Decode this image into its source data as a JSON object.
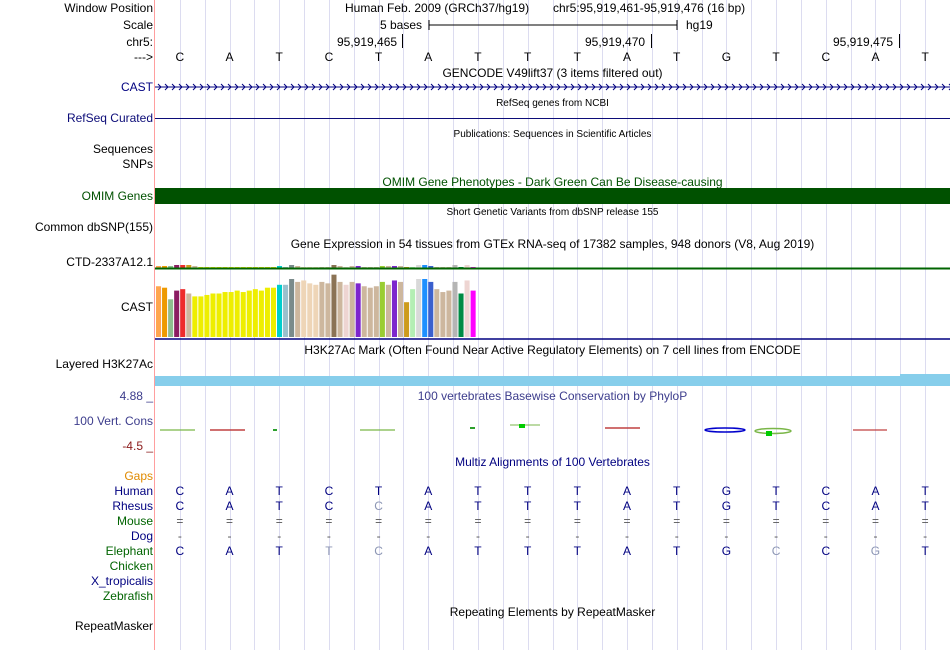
{
  "ruler": {
    "window_position_label": "Window Position",
    "scale_label": "Scale",
    "chrom_label": "chr5:",
    "arrow_label": "--->",
    "assembly_text": "Human Feb. 2009 (GRCh37/hg19)",
    "position_text": "chr5:95,919,461-95,919,476 (16 bp)",
    "scale_text": "5 bases",
    "scale_db": "hg19",
    "ticks": [
      "95,919,465",
      "95,919,470",
      "95,919,475"
    ],
    "bases": [
      "C",
      "A",
      "T",
      "C",
      "T",
      "A",
      "T",
      "T",
      "T",
      "A",
      "T",
      "G",
      "T",
      "C",
      "A",
      "T"
    ]
  },
  "tracks": {
    "gencode": {
      "center_label": "GENCODE V49lift37 (3 items filtered out)",
      "side_label": "CAST",
      "color": "#000080"
    },
    "refseq": {
      "center_label": "RefSeq genes from NCBI",
      "side_label": "RefSeq Curated",
      "color": "#0c0c78"
    },
    "publications": {
      "center_label": "Publications: Sequences in Scientific Articles",
      "side_labels": [
        "Sequences",
        "SNPs"
      ]
    },
    "omim": {
      "center_label": "OMIM Gene Phenotypes - Dark Green Can Be Disease-causing",
      "side_label": "OMIM Genes",
      "color": "#005100"
    },
    "dbsnp": {
      "center_label": "Short Genetic Variants from dbSNP release 155",
      "side_label": "Common dbSNP(155)"
    },
    "gtex": {
      "center_label": "Gene Expression in 54 tissues from GTEx RNA-seq of 17382 samples, 948 donors (V8, Aug 2019)",
      "side_labels": [
        "CTD-2337A12.1",
        "CAST"
      ],
      "line_color": "#006400",
      "bars_small": [
        {
          "h": 2,
          "c": "#ffa54f"
        },
        {
          "h": 2,
          "c": "#ee9a00"
        },
        {
          "h": 2,
          "c": "#8fbc8f"
        },
        {
          "h": 3,
          "c": "#8b1c62"
        },
        {
          "h": 3,
          "c": "#ee2c2c"
        },
        {
          "h": 3,
          "c": "#cd9b1d"
        },
        {
          "h": 2,
          "c": "#cdb79e"
        },
        {
          "h": 1,
          "c": "#eeee00"
        },
        {
          "h": 1,
          "c": "#eeee00"
        },
        {
          "h": 1,
          "c": "#eeee00"
        },
        {
          "h": 1,
          "c": "#eeee00"
        },
        {
          "h": 1,
          "c": "#eeee00"
        },
        {
          "h": 1,
          "c": "#eeee00"
        },
        {
          "h": 1,
          "c": "#eeee00"
        },
        {
          "h": 1,
          "c": "#eeee00"
        },
        {
          "h": 1,
          "c": "#eeee00"
        },
        {
          "h": 1,
          "c": "#eeee00"
        },
        {
          "h": 1,
          "c": "#eeee00"
        },
        {
          "h": 1,
          "c": "#eeee00"
        },
        {
          "h": 1,
          "c": "#eeee00"
        },
        {
          "h": 2,
          "c": "#00cdcd"
        },
        {
          "h": 1,
          "c": "#9ac0cd"
        },
        {
          "h": 3,
          "c": "#7a8b8b"
        },
        {
          "h": 2,
          "c": "#cdb79e"
        },
        {
          "h": 1,
          "c": "#eed5b7"
        },
        {
          "h": 1,
          "c": "#eed5b7"
        },
        {
          "h": 1,
          "c": "#eed5b7"
        },
        {
          "h": 1,
          "c": "#cdb79e"
        },
        {
          "h": 1,
          "c": "#cdb79e"
        },
        {
          "h": 3,
          "c": "#8b7355"
        },
        {
          "h": 2,
          "c": "#cdb79e"
        },
        {
          "h": 1,
          "c": "#eed5d2"
        },
        {
          "h": 2,
          "c": "#cdb79e"
        },
        {
          "h": 2,
          "c": "#7d26cd"
        },
        {
          "h": 1,
          "c": "#cdb79e"
        },
        {
          "h": 1,
          "c": "#cdb79e"
        },
        {
          "h": 1,
          "c": "#cdb79e"
        },
        {
          "h": 2,
          "c": "#9acd32"
        },
        {
          "h": 2,
          "c": "#cdb79e"
        },
        {
          "h": 2,
          "c": "#7d26cd"
        },
        {
          "h": 2,
          "c": "#cdb79e"
        },
        {
          "h": 1,
          "c": "#cd9b1d"
        },
        {
          "h": 1,
          "c": "#b4eeb4"
        },
        {
          "h": 3,
          "c": "#d9d9d9"
        },
        {
          "h": 3,
          "c": "#1e90ff"
        },
        {
          "h": 2,
          "c": "#3a5fcd"
        },
        {
          "h": 1,
          "c": "#cdb79e"
        },
        {
          "h": 1,
          "c": "#cdb79e"
        },
        {
          "h": 1,
          "c": "#cdb79e"
        },
        {
          "h": 3,
          "c": "#b5b5b5"
        },
        {
          "h": 1,
          "c": "#008b45"
        },
        {
          "h": 3,
          "c": "#eed5d2"
        },
        {
          "h": 1,
          "c": "#ff00ff"
        }
      ],
      "bars_large": [
        {
          "h": 34,
          "c": "#ffa54f"
        },
        {
          "h": 31,
          "c": "#ee9a00"
        },
        {
          "h": 26,
          "c": "#8fbc8f"
        },
        {
          "h": 32,
          "c": "#8b1c62"
        },
        {
          "h": 33,
          "c": "#ee2c2c"
        },
        {
          "h": 30,
          "c": "#cdb79e"
        },
        {
          "h": 27,
          "c": "#e8c8a8"
        },
        {
          "h": 31,
          "c": "#cd9b1d"
        },
        {
          "h": 30,
          "c": "#cdb79e"
        },
        {
          "h": 1,
          "c": "#cdb79e"
        }
      ]
    },
    "gtex_cast_bars": [
      {
        "h": 35,
        "c": "#ffa54f"
      },
      {
        "h": 34,
        "c": "#ee9a00"
      },
      {
        "h": 26,
        "c": "#8fbc8f"
      },
      {
        "h": 32,
        "c": "#8b1c62"
      },
      {
        "h": 33,
        "c": "#ee2c2c"
      },
      {
        "h": 30,
        "c": "#cdb79e"
      },
      {
        "h": 28,
        "c": "#eeee00"
      },
      {
        "h": 28,
        "c": "#eeee00"
      },
      {
        "h": 29,
        "c": "#eeee00"
      },
      {
        "h": 30,
        "c": "#eeee00"
      },
      {
        "h": 30,
        "c": "#eeee00"
      },
      {
        "h": 31,
        "c": "#eeee00"
      },
      {
        "h": 31,
        "c": "#eeee00"
      },
      {
        "h": 32,
        "c": "#eeee00"
      },
      {
        "h": 31,
        "c": "#eeee00"
      },
      {
        "h": 32,
        "c": "#eeee00"
      },
      {
        "h": 33,
        "c": "#eeee00"
      },
      {
        "h": 32,
        "c": "#eeee00"
      },
      {
        "h": 34,
        "c": "#eeee00"
      },
      {
        "h": 34,
        "c": "#eeee00"
      },
      {
        "h": 36,
        "c": "#00cdcd"
      },
      {
        "h": 36,
        "c": "#9ac0cd"
      },
      {
        "h": 40,
        "c": "#7a8b8b"
      },
      {
        "h": 38,
        "c": "#cdb79e"
      },
      {
        "h": 39,
        "c": "#eed5b7"
      },
      {
        "h": 37,
        "c": "#eed5b7"
      },
      {
        "h": 36,
        "c": "#eed5b7"
      },
      {
        "h": 38,
        "c": "#cdb79e"
      },
      {
        "h": 37,
        "c": "#cdb79e"
      },
      {
        "h": 43,
        "c": "#8b7355"
      },
      {
        "h": 38,
        "c": "#cdb79e"
      },
      {
        "h": 36,
        "c": "#eed5d2"
      },
      {
        "h": 38,
        "c": "#cdb79e"
      },
      {
        "h": 37,
        "c": "#7d26cd"
      },
      {
        "h": 35,
        "c": "#cdb79e"
      },
      {
        "h": 34,
        "c": "#cdb79e"
      },
      {
        "h": 35,
        "c": "#cdb79e"
      },
      {
        "h": 38,
        "c": "#9acd32"
      },
      {
        "h": 36,
        "c": "#cdb79e"
      },
      {
        "h": 39,
        "c": "#7d26cd"
      },
      {
        "h": 38,
        "c": "#cdb79e"
      },
      {
        "h": 24,
        "c": "#cd9b1d"
      },
      {
        "h": 33,
        "c": "#b4eeb4"
      },
      {
        "h": 40,
        "c": "#d9d9d9"
      },
      {
        "h": 40,
        "c": "#1e90ff"
      },
      {
        "h": 38,
        "c": "#3a5fcd"
      },
      {
        "h": 33,
        "c": "#cdb79e"
      },
      {
        "h": 31,
        "c": "#cdb79e"
      },
      {
        "h": 32,
        "c": "#cdb79e"
      },
      {
        "h": 38,
        "c": "#b5b5b5"
      },
      {
        "h": 30,
        "c": "#008b45"
      },
      {
        "h": 39,
        "c": "#eed5d2"
      },
      {
        "h": 32,
        "c": "#ff00ff"
      }
    ],
    "h3k27ac": {
      "center_label": "H3K27Ac Mark (Often Found Near Active Regulatory Elements) on 7 cell lines from ENCODE",
      "side_label": "Layered H3K27Ac",
      "color": "#87ceeb"
    },
    "phylop": {
      "center_label": "100 vertebrates Basewise Conservation by PhyloP",
      "side_label": "100 Vert. Cons",
      "max_label": "4.88 _",
      "min_label": "-4.5 _",
      "label_color": "#3c3c8c"
    },
    "multiz": {
      "center_label": "Multiz Alignments of 100 Vertebrates",
      "gaps_label": "Gaps",
      "species": [
        {
          "name": "Human",
          "color": "#000080",
          "row": [
            "C",
            "A",
            "T",
            "C",
            "T",
            "A",
            "T",
            "T",
            "T",
            "A",
            "T",
            "G",
            "T",
            "C",
            "A",
            "T"
          ]
        },
        {
          "name": "Rhesus",
          "color": "#000080",
          "row": [
            "C",
            "A",
            "T",
            "C",
            "C",
            "A",
            "T",
            "T",
            "T",
            "A",
            "T",
            "G",
            "T",
            "C",
            "A",
            "T"
          ]
        },
        {
          "name": "Mouse",
          "color": "#006400",
          "row": [
            "=",
            "=",
            "=",
            "=",
            "=",
            "=",
            "=",
            "=",
            "=",
            "=",
            "=",
            "=",
            "=",
            "=",
            "=",
            "="
          ]
        },
        {
          "name": "Dog",
          "color": "#000080",
          "row": [
            "-",
            "-",
            "-",
            "-",
            "-",
            "-",
            "-",
            "-",
            "-",
            "-",
            "-",
            "-",
            "-",
            "-",
            "-",
            "-"
          ]
        },
        {
          "name": "Elephant",
          "color": "#006400",
          "row": [
            "C",
            "A",
            "T",
            "T",
            "C",
            "A",
            "T",
            "T",
            "T",
            "A",
            "T",
            "G",
            "C",
            "C",
            "G",
            "T"
          ]
        },
        {
          "name": "Chicken",
          "color": "#006400",
          "row": []
        },
        {
          "name": "X_tropicalis",
          "color": "#000080",
          "row": []
        },
        {
          "name": "Zebrafish",
          "color": "#006400",
          "row": []
        }
      ]
    },
    "repeatmasker": {
      "center_label": "Repeating Elements by RepeatMasker",
      "side_label": "RepeatMasker"
    }
  }
}
